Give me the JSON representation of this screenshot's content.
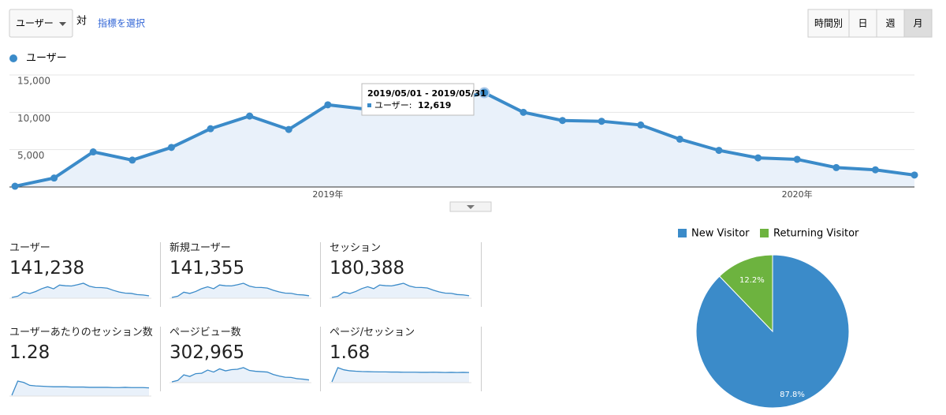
{
  "toolbar": {
    "metric_select": "ユーザー",
    "versus": "対",
    "select_metric_link": "指標を選択",
    "periods": [
      "時間別",
      "日",
      "週",
      "月"
    ],
    "active_period": 3
  },
  "chart_data": [
    {
      "type": "line",
      "legend": "ユーザー",
      "categories": [
        null,
        null,
        null,
        null,
        null,
        null,
        null,
        null,
        "2019年",
        null,
        null,
        null,
        null,
        null,
        null,
        null,
        null,
        null,
        null,
        null,
        "2020年",
        null,
        null,
        null
      ],
      "series": [
        {
          "name": "ユーザー",
          "color": "#3b8bc9",
          "values": [
            100,
            1200,
            4700,
            3600,
            5300,
            7800,
            9500,
            7700,
            11000,
            10400,
            10200,
            11300,
            12619,
            10000,
            8900,
            8800,
            8300,
            6400,
            4900,
            3900,
            3700,
            2600,
            2300,
            1600
          ]
        }
      ],
      "ylim": [
        0,
        15000
      ],
      "yticks": [
        {
          "value": 5000,
          "label": "5,000"
        },
        {
          "value": 10000,
          "label": "10,000"
        },
        {
          "value": 15000,
          "label": "15,000"
        }
      ],
      "grid": true,
      "area": true,
      "tooltip": {
        "index": 12,
        "title": "2019/05/01 - 2019/05/31",
        "label": "ユーザー:",
        "value_label": "12,619"
      }
    },
    {
      "type": "pie",
      "categories": [
        "New Visitor",
        "Returning Visitor"
      ],
      "values": [
        87.8,
        12.2
      ],
      "value_labels": [
        "87.8%",
        "12.2%"
      ],
      "colors": [
        "#3b8bc9",
        "#6db33f"
      ]
    }
  ],
  "metrics": [
    {
      "label": "ユーザー",
      "value": 141238,
      "value_label": "141,238",
      "sparkline": [
        100,
        1200,
        4700,
        3600,
        5300,
        7800,
        9500,
        7700,
        11000,
        10400,
        10200,
        11300,
        12619,
        10000,
        8900,
        8800,
        8300,
        6400,
        4900,
        3900,
        3700,
        2600,
        2300,
        1600
      ]
    },
    {
      "label": "新規ユーザー",
      "value": 141355,
      "value_label": "141,355",
      "sparkline": [
        100,
        1200,
        4700,
        3600,
        5300,
        7800,
        9400,
        7700,
        11000,
        10300,
        10200,
        11200,
        12500,
        10000,
        8900,
        8800,
        8300,
        6400,
        4900,
        3900,
        3700,
        2600,
        2300,
        1600
      ]
    },
    {
      "label": "セッション",
      "value": 180388,
      "value_label": "180,388",
      "sparkline": [
        150,
        1500,
        6000,
        4600,
        6800,
        10000,
        12100,
        9900,
        14000,
        13300,
        13000,
        14400,
        16000,
        12900,
        11400,
        11300,
        10700,
        8300,
        6300,
        5000,
        4800,
        3400,
        3000,
        2100
      ]
    },
    {
      "label": "ユーザーあたりのセッション数",
      "value": 1.28,
      "sparkline": [
        1.0,
        1.5,
        1.45,
        1.35,
        1.33,
        1.32,
        1.31,
        1.3,
        1.3,
        1.3,
        1.29,
        1.29,
        1.29,
        1.28,
        1.28,
        1.28,
        1.28,
        1.27,
        1.27,
        1.28,
        1.27,
        1.27,
        1.27,
        1.26
      ]
    },
    {
      "label": "ページビュー数",
      "value": 302965,
      "value_label": "302,965",
      "sparkline": [
        200,
        2000,
        9000,
        7000,
        10500,
        11000,
        15000,
        12500,
        16500,
        14000,
        15500,
        16000,
        18000,
        14500,
        13500,
        13000,
        12500,
        9500,
        7500,
        6000,
        5800,
        4200,
        3600,
        2600
      ]
    },
    {
      "label": "ページ/セッション",
      "value": 1.68,
      "sparkline": [
        1.0,
        2.0,
        1.85,
        1.78,
        1.75,
        1.73,
        1.72,
        1.71,
        1.7,
        1.7,
        1.69,
        1.69,
        1.68,
        1.68,
        1.68,
        1.67,
        1.67,
        1.68,
        1.67,
        1.66,
        1.67,
        1.66,
        1.67,
        1.66
      ]
    }
  ]
}
